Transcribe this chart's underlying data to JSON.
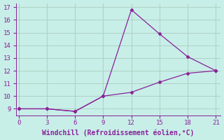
{
  "x": [
    0,
    3,
    6,
    9,
    12,
    15,
    18,
    21
  ],
  "y_line1": [
    9,
    9,
    8.8,
    10,
    16.8,
    14.9,
    13.1,
    12
  ],
  "y_line2": [
    9,
    9,
    8.8,
    10,
    10.3,
    11.1,
    11.8,
    12
  ],
  "xlim": [
    -0.3,
    21.5
  ],
  "ylim": [
    8.5,
    17.3
  ],
  "xticks": [
    0,
    3,
    6,
    9,
    12,
    15,
    18,
    21
  ],
  "yticks": [
    9,
    10,
    11,
    12,
    13,
    14,
    15,
    16,
    17
  ],
  "xlabel": "Windchill (Refroidissement éolien,°C)",
  "line_color": "#882299",
  "bg_color": "#C8EEE8",
  "grid_color": "#AACCBB",
  "marker": "D",
  "marker_size": 2.5,
  "linewidth": 0.9,
  "xlabel_fontsize": 7,
  "tick_fontsize": 6.5,
  "tick_color": "#882299",
  "label_color": "#882299"
}
